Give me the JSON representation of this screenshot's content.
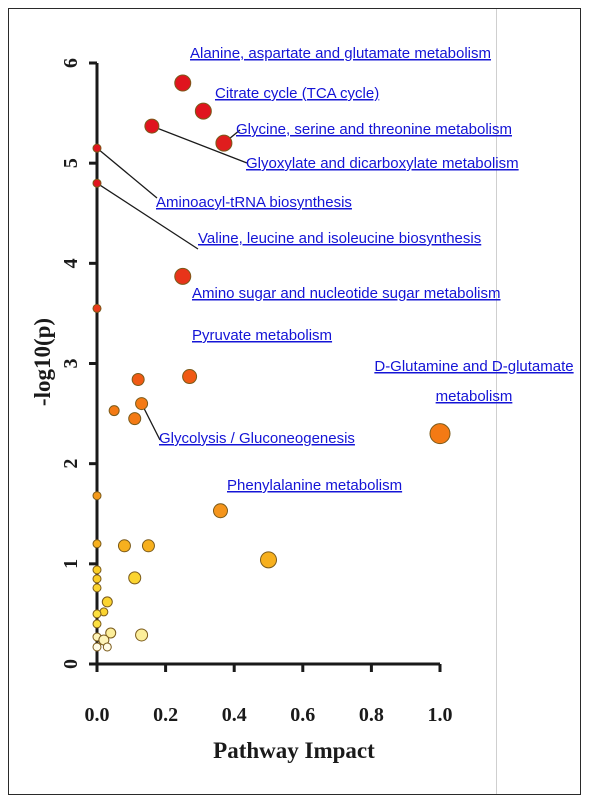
{
  "chart_data": {
    "type": "scatter",
    "title": "",
    "xlabel": "Pathway Impact",
    "ylabel": "-log10(p)",
    "xlim": [
      0,
      1.0
    ],
    "ylim": [
      0,
      6
    ],
    "x_ticks": [
      "0.0",
      "0.2",
      "0.4",
      "0.6",
      "0.8",
      "1.0"
    ],
    "y_ticks": [
      "0",
      "1",
      "2",
      "3",
      "4",
      "5",
      "6"
    ],
    "grid": false,
    "points": [
      {
        "x": 0.25,
        "y": 5.8,
        "color": "#e0141e",
        "size": 8
      },
      {
        "x": 0.31,
        "y": 5.52,
        "color": "#e0141e",
        "size": 8
      },
      {
        "x": 0.16,
        "y": 5.37,
        "color": "#e0141e",
        "size": 7
      },
      {
        "x": 0.37,
        "y": 5.2,
        "color": "#e01d1e",
        "size": 8
      },
      {
        "x": 0.0,
        "y": 5.15,
        "color": "#e0141e",
        "size": 4
      },
      {
        "x": 0.0,
        "y": 4.8,
        "color": "#e0141e",
        "size": 4
      },
      {
        "x": 0.25,
        "y": 3.87,
        "color": "#e8341a",
        "size": 8
      },
      {
        "x": 0.0,
        "y": 3.55,
        "color": "#ea3a1a",
        "size": 4
      },
      {
        "x": 0.27,
        "y": 2.87,
        "color": "#f05a14",
        "size": 7
      },
      {
        "x": 0.12,
        "y": 2.84,
        "color": "#f05a14",
        "size": 6
      },
      {
        "x": 0.13,
        "y": 2.6,
        "color": "#f47a14",
        "size": 6
      },
      {
        "x": 0.05,
        "y": 2.53,
        "color": "#f47a14",
        "size": 5
      },
      {
        "x": 0.11,
        "y": 2.45,
        "color": "#f47a14",
        "size": 6
      },
      {
        "x": 1.0,
        "y": 2.3,
        "color": "#f47a14",
        "size": 10
      },
      {
        "x": 0.0,
        "y": 1.68,
        "color": "#f59a1c",
        "size": 4
      },
      {
        "x": 0.36,
        "y": 1.53,
        "color": "#f5951c",
        "size": 7
      },
      {
        "x": 0.0,
        "y": 1.2,
        "color": "#f7b01e",
        "size": 4
      },
      {
        "x": 0.08,
        "y": 1.18,
        "color": "#f7b01e",
        "size": 6
      },
      {
        "x": 0.15,
        "y": 1.18,
        "color": "#f7b01e",
        "size": 6
      },
      {
        "x": 0.5,
        "y": 1.04,
        "color": "#f7b01e",
        "size": 8
      },
      {
        "x": 0.0,
        "y": 0.94,
        "color": "#fbce26",
        "size": 4
      },
      {
        "x": 0.0,
        "y": 0.85,
        "color": "#fbce26",
        "size": 4
      },
      {
        "x": 0.11,
        "y": 0.86,
        "color": "#fbd430",
        "size": 6
      },
      {
        "x": 0.0,
        "y": 0.76,
        "color": "#fbd430",
        "size": 4
      },
      {
        "x": 0.03,
        "y": 0.62,
        "color": "#fbd430",
        "size": 5
      },
      {
        "x": 0.02,
        "y": 0.52,
        "color": "#fbd430",
        "size": 4
      },
      {
        "x": 0.0,
        "y": 0.5,
        "color": "#fce040",
        "size": 4
      },
      {
        "x": 0.0,
        "y": 0.4,
        "color": "#fce040",
        "size": 4
      },
      {
        "x": 0.13,
        "y": 0.29,
        "color": "#fcee9a",
        "size": 6
      },
      {
        "x": 0.04,
        "y": 0.31,
        "color": "#fcee9a",
        "size": 5
      },
      {
        "x": 0.0,
        "y": 0.27,
        "color": "#fdf3b8",
        "size": 4
      },
      {
        "x": 0.02,
        "y": 0.24,
        "color": "#fdf3b8",
        "size": 5
      },
      {
        "x": 0.0,
        "y": 0.17,
        "color": "#fffbe6",
        "size": 4
      },
      {
        "x": 0.03,
        "y": 0.17,
        "color": "#fffbe6",
        "size": 4
      }
    ],
    "annotations": [
      {
        "lines": [
          "Alanine, aspartate and glutamate metabolism"
        ]
      },
      {
        "lines": [
          "Citrate cycle (TCA cycle)"
        ]
      },
      {
        "lines": [
          "Glycine, serine and threonine metabolism"
        ]
      },
      {
        "lines": [
          "Glyoxylate and dicarboxylate metabolism"
        ]
      },
      {
        "lines": [
          "Aminoacyl-tRNA biosynthesis"
        ]
      },
      {
        "lines": [
          "Valine, leucine and isoleucine biosynthesis"
        ]
      },
      {
        "lines": [
          "Amino sugar and nucleotide sugar metabolism"
        ]
      },
      {
        "lines": [
          "Pyruvate metabolism"
        ]
      },
      {
        "lines": [
          "D-Glutamine and D-glutamate",
          "metabolism"
        ]
      },
      {
        "lines": [
          "Glycolysis / Gluconeogenesis"
        ]
      },
      {
        "lines": [
          "Phenylalanine metabolism"
        ]
      }
    ]
  }
}
